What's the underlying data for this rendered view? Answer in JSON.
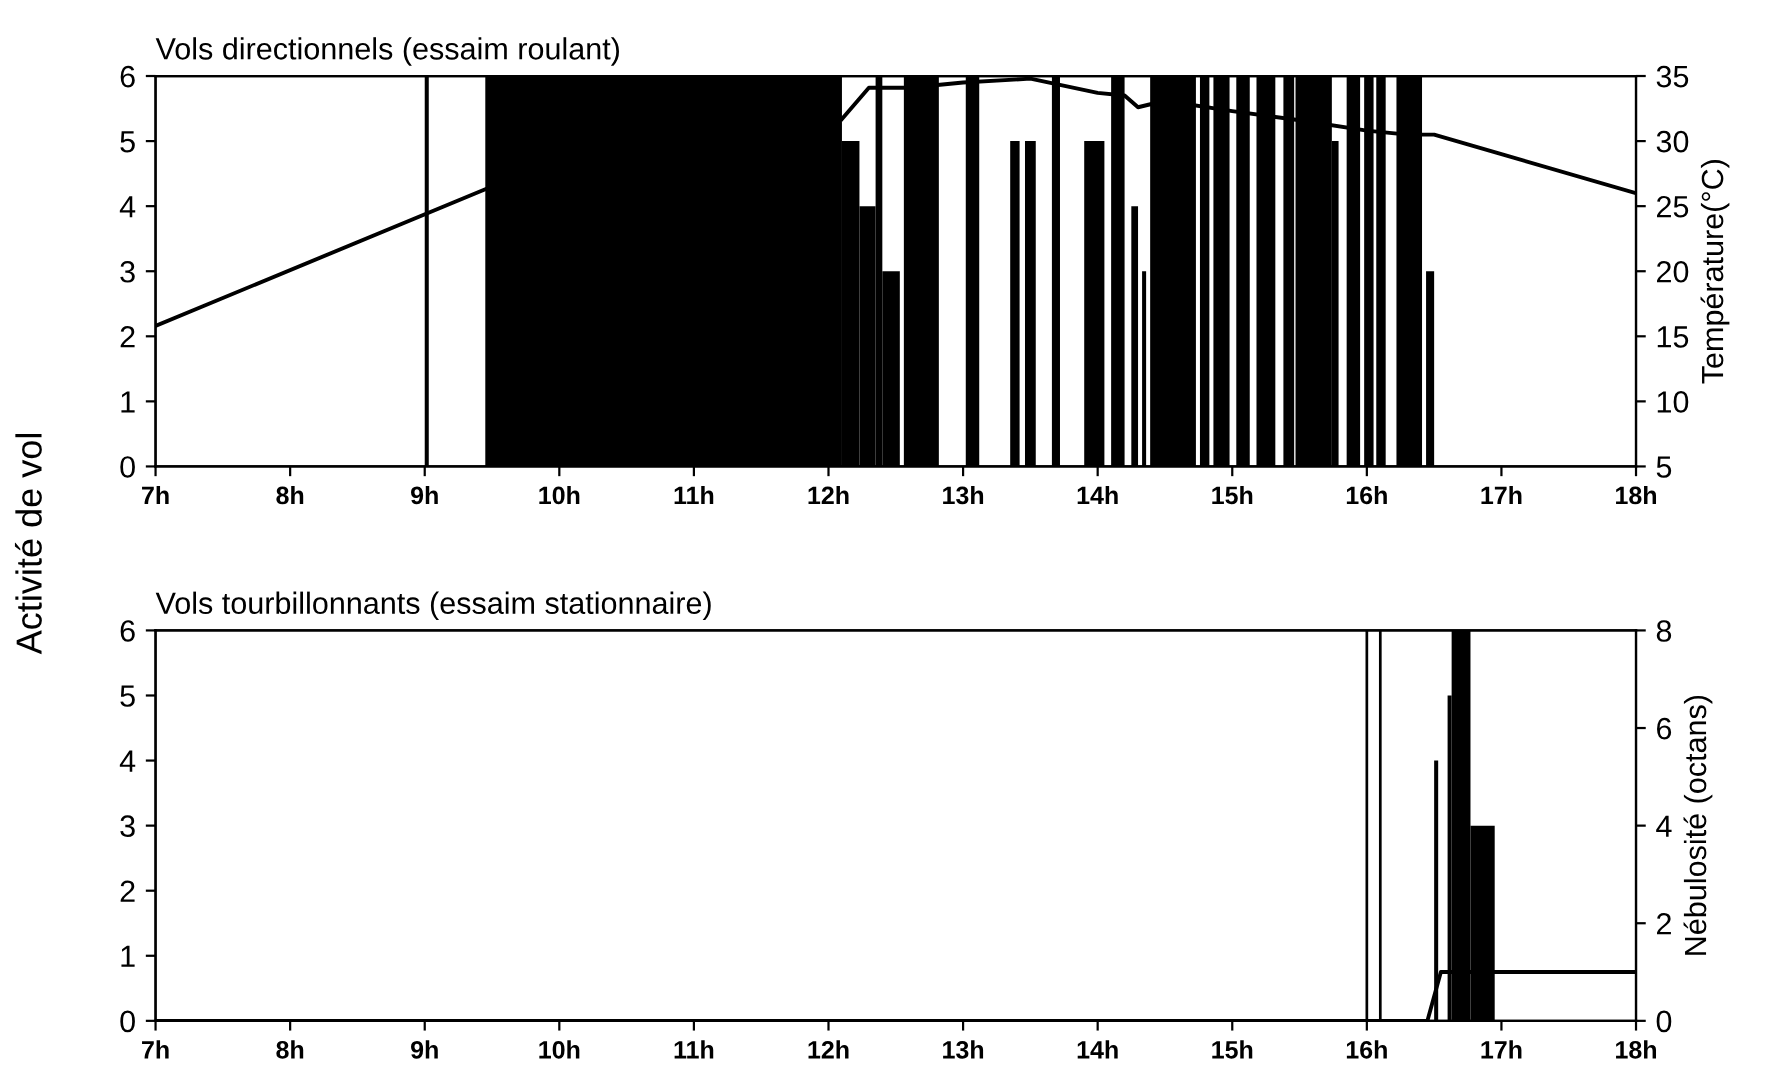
{
  "chart_data": [
    {
      "type": "histogram",
      "title": "Vols directionnels (essaim roulant)",
      "ylabel": "Activité de vol",
      "y2label": "Température(°C)",
      "xlim": [
        7,
        18
      ],
      "xticks": [
        {
          "value": 7,
          "label": "7h"
        },
        {
          "value": 8,
          "label": "8h"
        },
        {
          "value": 9,
          "label": "9h"
        },
        {
          "value": 10,
          "label": "10h"
        },
        {
          "value": 11,
          "label": "11h"
        },
        {
          "value": 12,
          "label": "12h"
        },
        {
          "value": 13,
          "label": "13h"
        },
        {
          "value": 14,
          "label": "14h"
        },
        {
          "value": 15,
          "label": "15h"
        },
        {
          "value": 16,
          "label": "16h"
        },
        {
          "value": 17,
          "label": "17h"
        },
        {
          "value": 18,
          "label": "18h"
        }
      ],
      "ylim": [
        0,
        6
      ],
      "yticks": [
        0,
        1,
        2,
        3,
        4,
        5,
        6
      ],
      "y2lim": [
        5,
        35
      ],
      "y2ticks": [
        5,
        10,
        15,
        20,
        25,
        30,
        35
      ],
      "series": [
        {
          "color": "#000000",
          "bins": [
            9.0,
            9.03,
            9.45,
            12.1,
            12.23,
            12.35,
            12.4,
            12.53,
            12.56,
            12.82,
            13.02,
            13.12,
            13.35,
            13.42,
            13.46,
            13.54,
            13.66,
            13.72,
            13.9,
            14.05,
            14.1,
            14.2,
            14.25,
            14.3,
            14.33,
            14.36,
            14.39,
            14.73,
            14.76,
            14.83,
            14.86,
            14.98,
            15.03,
            15.13,
            15.18,
            15.32,
            15.38,
            15.46,
            15.47,
            15.74,
            15.79,
            15.85,
            15.95,
            15.98,
            16.05,
            16.07,
            16.14,
            16.22,
            16.41,
            16.44,
            16.5
          ],
          "values": [
            6,
            0,
            6,
            5,
            4,
            6,
            3,
            0,
            6,
            0,
            6,
            0,
            5,
            0,
            5,
            0,
            6,
            0,
            5,
            0,
            6,
            0,
            4,
            0,
            3,
            0,
            6,
            0,
            6,
            0,
            6,
            0,
            6,
            0,
            6,
            0,
            6,
            0,
            6,
            5,
            0,
            6,
            0,
            6,
            0,
            6,
            0,
            6,
            0,
            3
          ]
        },
        {
          "type": "line",
          "axis": "y2",
          "color": "#000000",
          "x": [
            7,
            9.45,
            11,
            12.1,
            12.3,
            12.6,
            13.0,
            13.5,
            14.0,
            14.2,
            14.3,
            14.5,
            15.0,
            15.5,
            16.0,
            16.3,
            16.5,
            17.0,
            18.0
          ],
          "values": [
            15.8,
            26.3,
            null,
            31.7,
            34.1,
            34.1,
            34.5,
            34.8,
            33.7,
            33.5,
            32.6,
            33.1,
            32.3,
            31.6,
            30.8,
            30.5,
            30.5,
            29.0,
            26.0
          ]
        }
      ]
    },
    {
      "type": "histogram",
      "title": "Vols tourbillonnants (essaim stationnaire)",
      "y2label": "Nébulosité (octans)",
      "xlim": [
        7,
        18
      ],
      "xticks": [
        {
          "value": 7,
          "label": "7h"
        },
        {
          "value": 8,
          "label": "8h"
        },
        {
          "value": 9,
          "label": "9h"
        },
        {
          "value": 10,
          "label": "10h"
        },
        {
          "value": 11,
          "label": "11h"
        },
        {
          "value": 12,
          "label": "12h"
        },
        {
          "value": 13,
          "label": "13h"
        },
        {
          "value": 14,
          "label": "14h"
        },
        {
          "value": 15,
          "label": "15h"
        },
        {
          "value": 16,
          "label": "16h"
        },
        {
          "value": 17,
          "label": "17h"
        },
        {
          "value": 18,
          "label": "18h"
        }
      ],
      "ylim": [
        0,
        6
      ],
      "yticks": [
        0,
        1,
        2,
        3,
        4,
        5,
        6
      ],
      "y2lim": [
        0,
        8
      ],
      "y2ticks": [
        0,
        2,
        4,
        6,
        8
      ],
      "series": [
        {
          "color": "#000000",
          "bins": [
            15.99,
            16.01,
            16.09,
            16.11,
            16.5,
            16.53,
            16.6,
            16.63,
            16.77,
            16.95
          ],
          "values": [
            6,
            0,
            6,
            0,
            4,
            0,
            5,
            6,
            3
          ]
        },
        {
          "type": "line",
          "axis": "y2",
          "color": "#000000",
          "x": [
            7,
            16.45,
            16.55,
            16.6,
            18
          ],
          "values": [
            0,
            0,
            1,
            1,
            1
          ]
        }
      ]
    }
  ]
}
